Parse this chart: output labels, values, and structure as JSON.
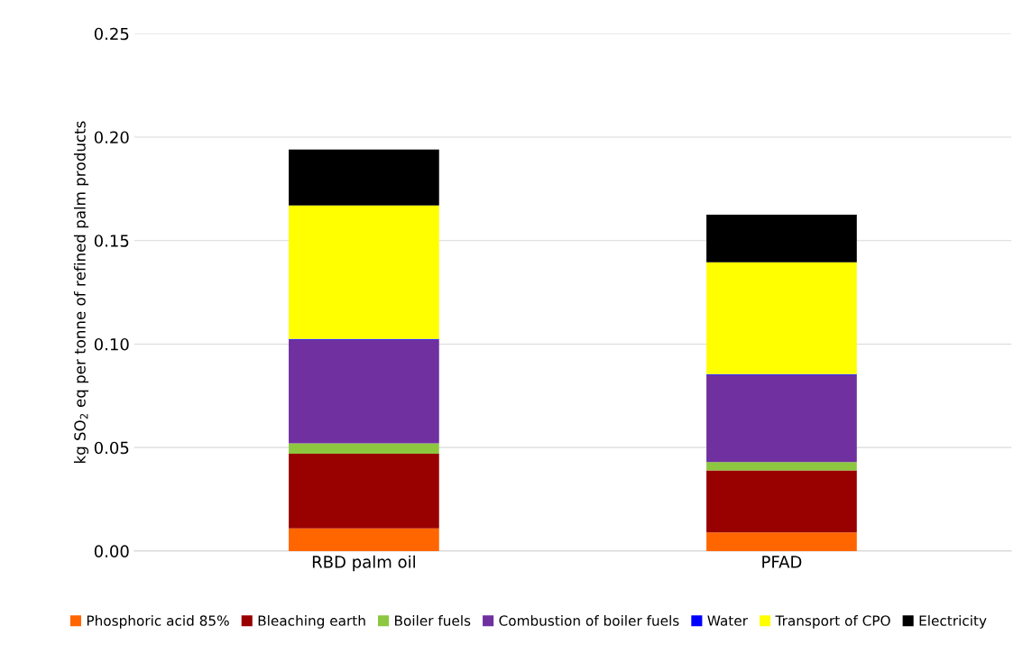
{
  "chart_data": {
    "type": "bar",
    "stacked": true,
    "ylabel": "kg SO$_{2}$ eq per tonne of refined palm products",
    "categories": [
      "RBD palm oil",
      "PFAD"
    ],
    "series": [
      {
        "name": "Phosphoric acid 85%",
        "color": "#ff6600",
        "values": [
          0.011,
          0.009
        ]
      },
      {
        "name": "Bleaching earth",
        "color": "#990000",
        "values": [
          0.036,
          0.03
        ]
      },
      {
        "name": "Boiler fuels",
        "color": "#8dc63f",
        "values": [
          0.005,
          0.004
        ]
      },
      {
        "name": "Combustion of boiler fuels",
        "color": "#7030a0",
        "values": [
          0.05,
          0.042
        ]
      },
      {
        "name": "Water",
        "color": "#0000ff",
        "values": [
          0.0005,
          0.0005
        ]
      },
      {
        "name": "Transport of CPO",
        "color": "#ffff00",
        "values": [
          0.0645,
          0.054
        ]
      },
      {
        "name": "Electricity",
        "color": "#000000",
        "values": [
          0.027,
          0.023
        ]
      }
    ],
    "ylim": [
      0,
      0.25
    ],
    "yticks": [
      {
        "value": 0,
        "label": "0.00"
      },
      {
        "value": 0.05,
        "label": "0.05"
      },
      {
        "value": 0.1,
        "label": "0.10"
      },
      {
        "value": 0.15,
        "label": "0.15"
      },
      {
        "value": 0.2,
        "label": "0.20"
      },
      {
        "value": 0.25,
        "label": "0.25"
      }
    ],
    "grid": "y",
    "legend": "bottom"
  }
}
